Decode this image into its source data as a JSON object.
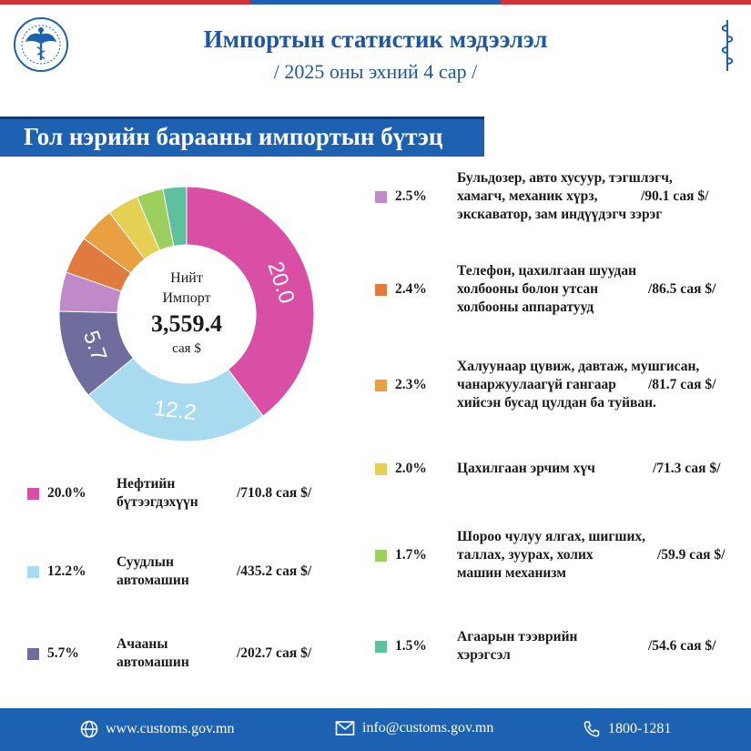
{
  "header": {
    "title": "Импортын статистик мэдээлэл",
    "subtitle": "/ 2025 оны эхний 4 сар /"
  },
  "section": {
    "title": "Гол нэрийн барааны импортын бүтэц"
  },
  "colors": {
    "brand_blue": "#1d62b2",
    "top_red": "#d0323a",
    "top_blue": "#1d62b2"
  },
  "chart_data": {
    "type": "pie",
    "style": "donut",
    "center_text": {
      "line1": "Нийт",
      "line2": "Импорт",
      "total": "3,559.4",
      "unit": "сая $"
    },
    "slice_labels": [
      "20.0",
      "12.2",
      "5.7"
    ],
    "total_value": 3559.4,
    "slices": [
      {
        "label": "Нефтийн бүтээгдэхүүн",
        "percent": 20.0,
        "value": 710.8,
        "color": "#d94fa6"
      },
      {
        "label": "Суудлын автомашин",
        "percent": 12.2,
        "value": 435.2,
        "color": "#a8dbf0"
      },
      {
        "label": "Ачааны автомашин",
        "percent": 5.7,
        "value": 202.7,
        "color": "#6f6c9e"
      },
      {
        "label": "Бульдозер, авто хусуур, тэгшлэгч, хамагч, механик хүрз, экскаватор, зам индүүдэгч зэрэг",
        "percent": 2.5,
        "value": 90.1,
        "color": "#c08ac8"
      },
      {
        "label": "Телефон, цахилгаан шуудан холбооны болон утсан холбооны аппаратууд",
        "percent": 2.4,
        "value": 86.5,
        "color": "#e07a3e"
      },
      {
        "label": "Халуунаар цувиж, давтаж, мушгисан, чанаржуулаагүй гангаар хийсэн бусад цулдан ба туйван.",
        "percent": 2.3,
        "value": 81.7,
        "color": "#e8a040"
      },
      {
        "label": "Цахилгаан эрчим хүч",
        "percent": 2.0,
        "value": 71.3,
        "color": "#e5cf55"
      },
      {
        "label": "Шороо чулуу ялгах, шигших, таллах, зуурах, холих машин механизм",
        "percent": 1.7,
        "value": 59.9,
        "color": "#9ccf5d"
      },
      {
        "label": "Агаарын тээврийн хэрэгсэл",
        "percent": 1.5,
        "value": 54.6,
        "color": "#5fc0a0"
      }
    ]
  },
  "legend": [
    {
      "pct": "20.0%",
      "lines": [
        "Нефтийн",
        "бүтээгдэхүүн"
      ],
      "value": "/710.8 сая $/"
    },
    {
      "pct": "12.2%",
      "lines": [
        "Суудлын",
        "автомашин"
      ],
      "value": "/435.2 сая $/"
    },
    {
      "pct": "5.7%",
      "lines": [
        "Ачааны",
        "автомашин"
      ],
      "value": "/202.7 сая $/"
    },
    {
      "pct": "2.5%",
      "lines": [
        "Бульдозер, авто хусуур, тэгшлэгч,",
        "хамагч, механик хүрз,",
        "экскаватор, зам индүүдэгч зэрэг"
      ],
      "value": "/90.1 сая $/"
    },
    {
      "pct": "2.4%",
      "lines": [
        "Телефон, цахилгаан шуудан",
        "холбооны болон утсан",
        "холбооны аппаратууд"
      ],
      "value": "/86.5 сая $/"
    },
    {
      "pct": "2.3%",
      "lines": [
        "Халуунаар цувиж, давтаж, мушгисан,",
        "чанаржуулаагүй гангаар",
        "хийсэн бусад цулдан ба туйван."
      ],
      "value": "/81.7 сая $/"
    },
    {
      "pct": "2.0%",
      "lines": [
        "Цахилгаан эрчим хүч"
      ],
      "value": "/71.3 сая $/"
    },
    {
      "pct": "1.7%",
      "lines": [
        "Шороо чулуу ялгах, шигших,",
        "таллах, зуурах, холих",
        "машин механизм"
      ],
      "value": "/59.9 сая $/"
    },
    {
      "pct": "1.5%",
      "lines": [
        "Агаарын тээврийн",
        "хэрэгсэл"
      ],
      "value": "/54.6 сая $/"
    }
  ],
  "footer": {
    "website": "www.customs.gov.mn",
    "email": "info@customs.gov.mn",
    "phone": "1800-1281"
  }
}
